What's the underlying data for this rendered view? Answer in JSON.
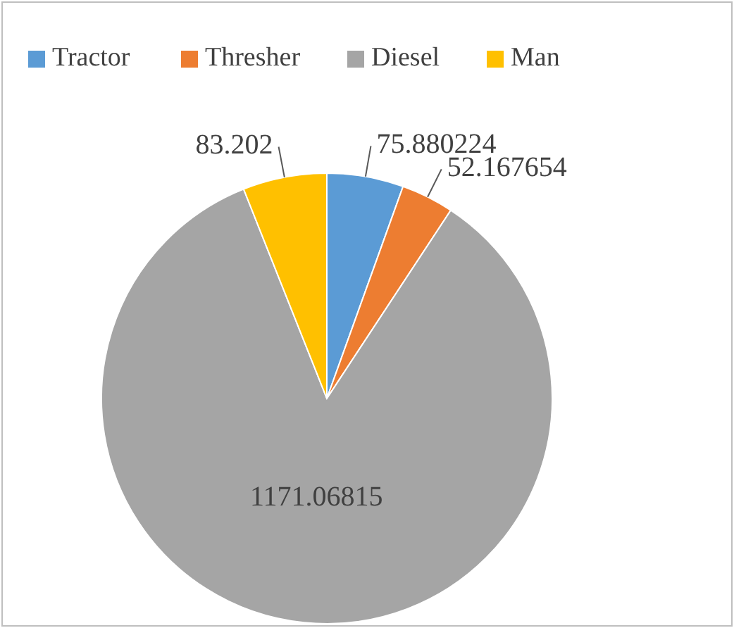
{
  "chart_data": {
    "type": "pie",
    "categories": [
      "Tractor",
      "Thresher",
      "Diesel",
      "Man"
    ],
    "values": [
      75.880224,
      52.167654,
      1171.06815,
      83.202
    ],
    "colors": [
      "#5b9bd5",
      "#ed7d31",
      "#a5a5a5",
      "#ffc000"
    ],
    "data_labels": true,
    "legend": "top"
  }
}
